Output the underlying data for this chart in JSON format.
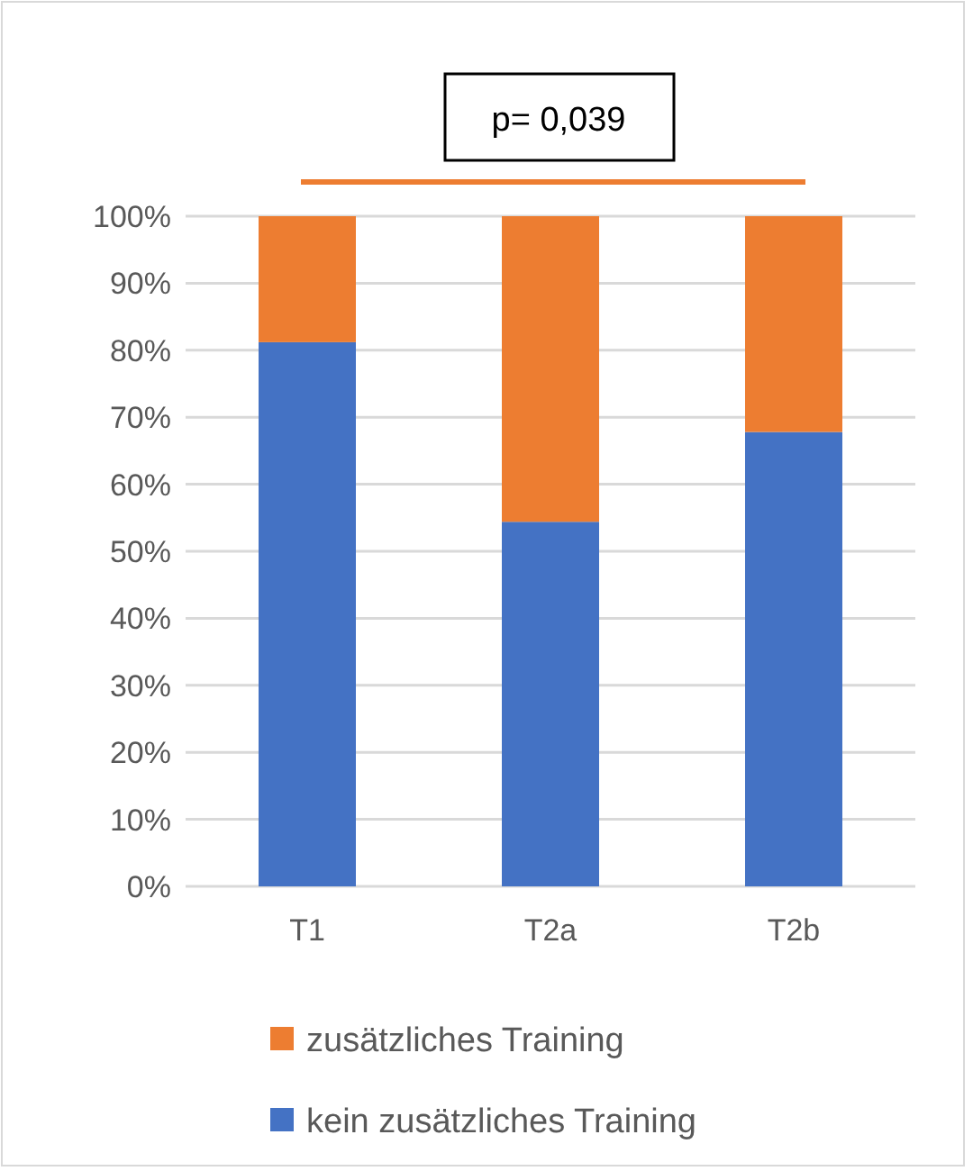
{
  "chart_data": {
    "type": "bar",
    "stacked": true,
    "categories": [
      "T1",
      "T2a",
      "T2b"
    ],
    "series": [
      {
        "name": "kein zusätzliches Training",
        "color": "#4472c4",
        "values": [
          81.2,
          54.4,
          67.8
        ]
      },
      {
        "name": "zusätzliches Training",
        "color": "#ed7d31",
        "values": [
          18.8,
          45.6,
          32.2
        ]
      }
    ],
    "ylim": [
      0,
      100
    ],
    "yticks": [
      {
        "value": 0,
        "label": "0%"
      },
      {
        "value": 10,
        "label": "10%"
      },
      {
        "value": 20,
        "label": "20%"
      },
      {
        "value": 30,
        "label": "30%"
      },
      {
        "value": 40,
        "label": "40%"
      },
      {
        "value": 50,
        "label": "50%"
      },
      {
        "value": 60,
        "label": "60%"
      },
      {
        "value": 70,
        "label": "70%"
      },
      {
        "value": 80,
        "label": "80%"
      },
      {
        "value": 90,
        "label": "90%"
      },
      {
        "value": 100,
        "label": "100%"
      }
    ],
    "grid": "y",
    "legend": "bottom",
    "annotations": [
      "p= 0,039"
    ]
  }
}
